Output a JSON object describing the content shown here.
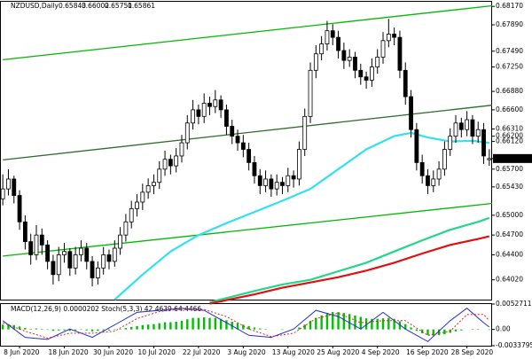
{
  "chart_data": {
    "type": "candlestick",
    "title": "NZDUSD,Daily",
    "osc_label": "MACD(12,26,9) 0.0000202 Stoch(5,3,3) 42.4639 64.4466",
    "categories": [
      null,
      null,
      null,
      "8 Jun 2020",
      null,
      null,
      null,
      null,
      null,
      null,
      null,
      "18 Jun 2020",
      null,
      null,
      null,
      null,
      null,
      null,
      null,
      "30 Jun 2020",
      null,
      null,
      null,
      null,
      null,
      null,
      null,
      "10 Jul 2020",
      null,
      null,
      null,
      null,
      null,
      null,
      null,
      "22 Jul 2020",
      null,
      null,
      null,
      null,
      null,
      null,
      null,
      "3 Aug 2020",
      null,
      null,
      null,
      null,
      null,
      null,
      null,
      "13 Aug 2020",
      null,
      null,
      null,
      null,
      null,
      null,
      null,
      "25 Aug 2020",
      null,
      null,
      null,
      null,
      null,
      null,
      null,
      "4 Sep 2020",
      null,
      null,
      null,
      null,
      null,
      null,
      null,
      "16 Sep 2020",
      null,
      null,
      null,
      null,
      null,
      null,
      null,
      "28 Sep 2020",
      null,
      null,
      null,
      null
    ],
    "candles": [
      [
        0.6525,
        0.6562,
        0.6515,
        0.654
      ],
      [
        0.654,
        0.657,
        0.653,
        0.6555
      ],
      [
        0.6555,
        0.656,
        0.6518,
        0.653
      ],
      [
        0.653,
        0.6538,
        0.6478,
        0.649
      ],
      [
        0.649,
        0.65,
        0.6448,
        0.646
      ],
      [
        0.646,
        0.6472,
        0.6425,
        0.644
      ],
      [
        0.644,
        0.6485,
        0.6432,
        0.647
      ],
      [
        0.647,
        0.648,
        0.644,
        0.6455
      ],
      [
        0.6455,
        0.6462,
        0.6418,
        0.643
      ],
      [
        0.643,
        0.644,
        0.6395,
        0.641
      ],
      [
        0.641,
        0.6452,
        0.64,
        0.644
      ],
      [
        0.644,
        0.6458,
        0.6428,
        0.6445
      ],
      [
        0.6445,
        0.645,
        0.6408,
        0.642
      ],
      [
        0.642,
        0.6452,
        0.641,
        0.644
      ],
      [
        0.644,
        0.6462,
        0.643,
        0.645
      ],
      [
        0.645,
        0.6458,
        0.6418,
        0.643
      ],
      [
        0.643,
        0.6438,
        0.6392,
        0.6405
      ],
      [
        0.6405,
        0.643,
        0.6395,
        0.642
      ],
      [
        0.642,
        0.6452,
        0.641,
        0.644
      ],
      [
        0.644,
        0.6448,
        0.6418,
        0.643
      ],
      [
        0.643,
        0.6462,
        0.6422,
        0.645
      ],
      [
        0.645,
        0.6482,
        0.644,
        0.647
      ],
      [
        0.647,
        0.6502,
        0.646,
        0.649
      ],
      [
        0.649,
        0.6522,
        0.648,
        0.651
      ],
      [
        0.651,
        0.6532,
        0.6498,
        0.652
      ],
      [
        0.652,
        0.6548,
        0.6508,
        0.6535
      ],
      [
        0.6535,
        0.6556,
        0.6525,
        0.6545
      ],
      [
        0.6545,
        0.6562,
        0.6532,
        0.655
      ],
      [
        0.655,
        0.6582,
        0.654,
        0.657
      ],
      [
        0.657,
        0.6598,
        0.656,
        0.6585
      ],
      [
        0.6585,
        0.6592,
        0.6562,
        0.6575
      ],
      [
        0.6575,
        0.6602,
        0.6565,
        0.659
      ],
      [
        0.659,
        0.6622,
        0.658,
        0.661
      ],
      [
        0.661,
        0.6652,
        0.66,
        0.664
      ],
      [
        0.664,
        0.6675,
        0.663,
        0.666
      ],
      [
        0.666,
        0.6668,
        0.6638,
        0.665
      ],
      [
        0.665,
        0.6685,
        0.664,
        0.667
      ],
      [
        0.667,
        0.668,
        0.6652,
        0.6665
      ],
      [
        0.6665,
        0.669,
        0.6655,
        0.6675
      ],
      [
        0.6675,
        0.6682,
        0.6648,
        0.666
      ],
      [
        0.666,
        0.6668,
        0.6622,
        0.6635
      ],
      [
        0.6635,
        0.6645,
        0.6608,
        0.662
      ],
      [
        0.662,
        0.663,
        0.6598,
        0.661
      ],
      [
        0.661,
        0.6622,
        0.6588,
        0.66
      ],
      [
        0.66,
        0.661,
        0.6568,
        0.658
      ],
      [
        0.658,
        0.659,
        0.6548,
        0.656
      ],
      [
        0.656,
        0.657,
        0.6532,
        0.6545
      ],
      [
        0.6545,
        0.6568,
        0.6535,
        0.6555
      ],
      [
        0.6555,
        0.6562,
        0.6528,
        0.654
      ],
      [
        0.654,
        0.6562,
        0.653,
        0.655
      ],
      [
        0.655,
        0.6558,
        0.6532,
        0.6545
      ],
      [
        0.6545,
        0.6572,
        0.6535,
        0.656
      ],
      [
        0.656,
        0.6568,
        0.6542,
        0.6555
      ],
      [
        0.6555,
        0.6612,
        0.6545,
        0.66
      ],
      [
        0.66,
        0.6662,
        0.659,
        0.665
      ],
      [
        0.665,
        0.6732,
        0.664,
        0.672
      ],
      [
        0.672,
        0.6758,
        0.6708,
        0.6745
      ],
      [
        0.6745,
        0.6772,
        0.6735,
        0.676
      ],
      [
        0.676,
        0.6795,
        0.675,
        0.678
      ],
      [
        0.678,
        0.679,
        0.6758,
        0.677
      ],
      [
        0.677,
        0.678,
        0.6738,
        0.675
      ],
      [
        0.675,
        0.6762,
        0.6722,
        0.6735
      ],
      [
        0.6735,
        0.6752,
        0.6725,
        0.674
      ],
      [
        0.674,
        0.6748,
        0.6708,
        0.672
      ],
      [
        0.672,
        0.673,
        0.6698,
        0.671
      ],
      [
        0.671,
        0.6718,
        0.6692,
        0.6705
      ],
      [
        0.6705,
        0.6738,
        0.6695,
        0.6725
      ],
      [
        0.6725,
        0.6752,
        0.6715,
        0.674
      ],
      [
        0.674,
        0.6778,
        0.673,
        0.6765
      ],
      [
        0.6765,
        0.6798,
        0.6755,
        0.6775
      ],
      [
        0.6775,
        0.6785,
        0.6758,
        0.677
      ],
      [
        0.677,
        0.678,
        0.6708,
        0.672
      ],
      [
        0.672,
        0.6732,
        0.6668,
        0.668
      ],
      [
        0.668,
        0.669,
        0.6618,
        0.663
      ],
      [
        0.663,
        0.664,
        0.6568,
        0.658
      ],
      [
        0.658,
        0.6592,
        0.6548,
        0.656
      ],
      [
        0.656,
        0.657,
        0.6532,
        0.6545
      ],
      [
        0.6545,
        0.6568,
        0.6535,
        0.6555
      ],
      [
        0.6555,
        0.6582,
        0.6545,
        0.657
      ],
      [
        0.657,
        0.6612,
        0.656,
        0.66
      ],
      [
        0.66,
        0.6632,
        0.659,
        0.662
      ],
      [
        0.662,
        0.6652,
        0.661,
        0.664
      ],
      [
        0.664,
        0.6648,
        0.6618,
        0.663
      ],
      [
        0.663,
        0.6658,
        0.662,
        0.6645
      ],
      [
        0.6645,
        0.6652,
        0.6608,
        0.662
      ],
      [
        0.662,
        0.6642,
        0.661,
        0.663
      ],
      [
        0.663,
        0.664,
        0.6578,
        0.659
      ],
      [
        0.65843,
        0.66002,
        0.65751,
        0.65861
      ]
    ],
    "ylim": [
      0.6372,
      0.6824
    ],
    "yticks": [
      {
        "value": 0.6817,
        "label": "0.68170"
      },
      {
        "value": 0.6789,
        "label": "0.67890"
      },
      {
        "value": 0.6749,
        "label": "0.67490"
      },
      {
        "value": 0.6725,
        "label": "0.67250"
      },
      {
        "value": 0.6688,
        "label": "0.66880"
      },
      {
        "value": 0.666,
        "label": "0.66600"
      },
      {
        "value": 0.6631,
        "label": "0.66310"
      },
      {
        "value": 0.662,
        "label": "0.66200"
      },
      {
        "value": 0.6612,
        "label": "0.66120"
      },
      0.65861,
      {
        "value": 0.657,
        "label": "0.65700"
      },
      {
        "value": 0.6543,
        "label": "0.65430"
      },
      {
        "value": 0.65,
        "label": "0.65000"
      },
      {
        "value": 0.647,
        "label": "0.64700"
      },
      {
        "value": 0.644,
        "label": "0.64400"
      },
      {
        "value": 0.6402,
        "label": "0.64020"
      }
    ],
    "trendlines": [
      {
        "color": "#00b800",
        "x": [
          0,
          87.5
        ],
        "values": [
          0.6736,
          0.6818
        ]
      },
      {
        "color": "#2e6b2e",
        "x": [
          0,
          87.5
        ],
        "values": [
          0.6584,
          0.6667
        ]
      },
      {
        "color": "#00b800",
        "x": [
          0,
          87.5
        ],
        "values": [
          0.6438,
          0.6518
        ]
      }
    ],
    "lines": [
      {
        "color": "#33e0f0",
        "x": [
          20,
          25,
          30,
          35,
          40,
          45,
          50,
          55,
          60,
          65,
          70,
          73,
          76,
          80,
          84,
          87
        ],
        "values": [
          0.6372,
          0.641,
          0.6445,
          0.647,
          0.6488,
          0.6505,
          0.6522,
          0.654,
          0.657,
          0.66,
          0.662,
          0.6625,
          0.6618,
          0.6612,
          0.6613,
          0.661
        ]
      },
      {
        "color": "#22d888",
        "x": [
          37,
          45,
          50,
          55,
          60,
          65,
          70,
          75,
          80,
          85,
          87
        ],
        "values": [
          0.6368,
          0.6385,
          0.6395,
          0.6402,
          0.6415,
          0.6428,
          0.6445,
          0.6462,
          0.6478,
          0.649,
          0.6496
        ]
      },
      {
        "color": "#e01010",
        "x": [
          37,
          45,
          50,
          55,
          60,
          65,
          70,
          75,
          80,
          85,
          87
        ],
        "values": [
          0.6366,
          0.638,
          0.639,
          0.6398,
          0.6406,
          0.6416,
          0.6428,
          0.6442,
          0.6455,
          0.6464,
          0.6468
        ]
      }
    ],
    "osc_ylim": [
      -0.0033795,
      0.0052711
    ],
    "osc_yticks": [
      0.0052711,
      {
        "value": 0,
        "label": "0.00"
      },
      -0.0033795
    ],
    "macd": [
      0.001,
      0.0011,
      0.0009,
      0.0006,
      0.0003,
      0.0001,
      0.0002,
      0.0001,
      -0.0001,
      -0.0003,
      -0.0002,
      -0.0002,
      -0.0003,
      -0.0002,
      -0.0001,
      -0.0002,
      -0.0004,
      -0.0003,
      -0.0002,
      -0.0002,
      -0.0001,
      0.0001,
      0.0003,
      0.0005,
      0.0007,
      0.0009,
      0.001,
      0.0011,
      0.0013,
      0.0015,
      0.0015,
      0.0016,
      0.0018,
      0.0021,
      0.0024,
      0.0024,
      0.0025,
      0.0024,
      0.0024,
      0.0022,
      0.0019,
      0.0016,
      0.0013,
      0.001,
      0.0007,
      0.0004,
      0.0002,
      0.0001,
      0,
      0,
      -0.0001,
      0,
      0,
      0.0004,
      0.001,
      0.0018,
      0.0024,
      0.0029,
      0.0034,
      0.0036,
      0.0036,
      0.0034,
      0.0032,
      0.0029,
      0.0026,
      0.0023,
      0.0022,
      0.0022,
      0.0023,
      0.0024,
      0.0022,
      0.0017,
      0.0011,
      0.0004,
      -0.0003,
      -0.0008,
      -0.0012,
      -0.0013,
      -0.0012,
      -0.001,
      -0.0007,
      -0.0004,
      -0.0002,
      0,
      0.0001,
      0.0001,
      0,
      -0.0001
    ],
    "macd_color": "#00c000",
    "stoch_lim": [
      0,
      100
    ],
    "stoch": [
      {
        "color": "#2030d0",
        "dash": false,
        "x": [
          0,
          4,
          8,
          12,
          16,
          20,
          24,
          28,
          32,
          36,
          40,
          44,
          48,
          52,
          56,
          60,
          64,
          68,
          72,
          76,
          80,
          83,
          86,
          87
        ],
        "values": [
          60,
          20,
          15,
          40,
          20,
          50,
          80,
          85,
          90,
          85,
          55,
          25,
          20,
          40,
          85,
          70,
          40,
          80,
          40,
          10,
          60,
          90,
          55,
          45
        ]
      },
      {
        "color": "#e02020",
        "dash": true,
        "x": [
          0,
          4,
          8,
          12,
          16,
          20,
          24,
          28,
          32,
          36,
          40,
          44,
          48,
          52,
          56,
          60,
          64,
          68,
          72,
          76,
          80,
          83,
          86,
          87
        ],
        "values": [
          55,
          35,
          18,
          30,
          30,
          35,
          65,
          82,
          88,
          87,
          70,
          40,
          22,
          30,
          65,
          78,
          55,
          60,
          60,
          25,
          35,
          75,
          75,
          60
        ]
      }
    ]
  }
}
